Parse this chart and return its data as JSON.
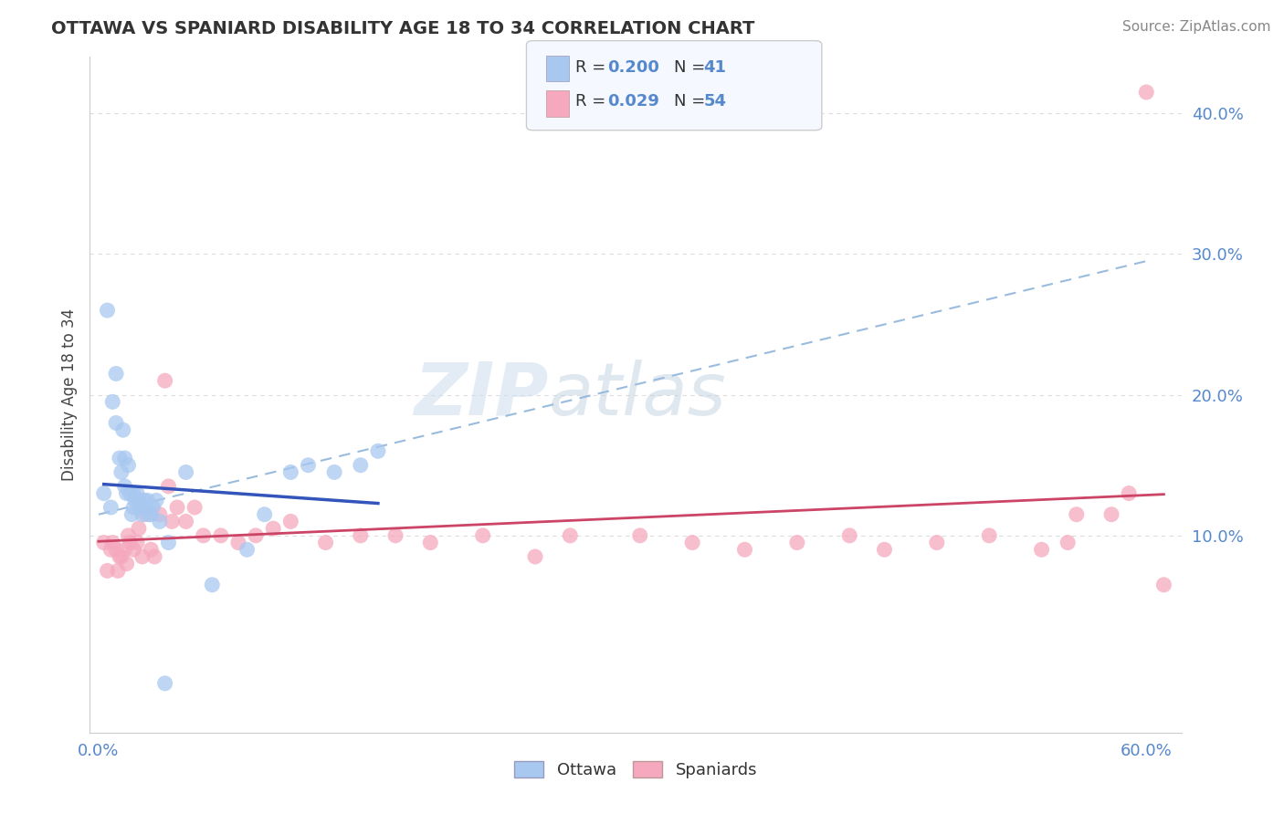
{
  "title": "OTTAWA VS SPANIARD DISABILITY AGE 18 TO 34 CORRELATION CHART",
  "source": "Source: ZipAtlas.com",
  "ylabel": "Disability Age 18 to 34",
  "xlim": [
    -0.005,
    0.62
  ],
  "ylim": [
    -0.04,
    0.44
  ],
  "xticks": [
    0.0,
    0.1,
    0.2,
    0.3,
    0.4,
    0.5,
    0.6
  ],
  "yticks": [
    0.0,
    0.1,
    0.2,
    0.3,
    0.4
  ],
  "ottawa_R": 0.2,
  "ottawa_N": 41,
  "spaniard_R": 0.029,
  "spaniard_N": 54,
  "ottawa_color": "#A8C8F0",
  "spaniard_color": "#F5A8BE",
  "ottawa_line_color": "#3355BB",
  "spaniard_line_color": "#CC4466",
  "ref_line_color": "#99BBDD",
  "tick_color": "#5588CC",
  "background_color": "#FFFFFF",
  "grid_color": "#DDDDDD",
  "ottawa_x": [
    0.003,
    0.005,
    0.007,
    0.008,
    0.01,
    0.01,
    0.012,
    0.013,
    0.014,
    0.015,
    0.015,
    0.016,
    0.017,
    0.018,
    0.019,
    0.02,
    0.02,
    0.021,
    0.022,
    0.023,
    0.024,
    0.025,
    0.026,
    0.027,
    0.028,
    0.029,
    0.03,
    0.031,
    0.033,
    0.035,
    0.038,
    0.04,
    0.05,
    0.065,
    0.085,
    0.095,
    0.11,
    0.12,
    0.135,
    0.15,
    0.16
  ],
  "ottawa_y": [
    0.13,
    0.26,
    0.12,
    0.195,
    0.215,
    0.18,
    0.155,
    0.145,
    0.175,
    0.155,
    0.135,
    0.13,
    0.15,
    0.13,
    0.115,
    0.12,
    0.13,
    0.125,
    0.13,
    0.125,
    0.12,
    0.115,
    0.125,
    0.12,
    0.125,
    0.115,
    0.115,
    0.12,
    0.125,
    0.11,
    -0.005,
    0.095,
    0.145,
    0.065,
    0.09,
    0.115,
    0.145,
    0.15,
    0.145,
    0.15,
    0.16
  ],
  "spaniard_x": [
    0.003,
    0.005,
    0.007,
    0.008,
    0.01,
    0.011,
    0.012,
    0.013,
    0.015,
    0.016,
    0.017,
    0.018,
    0.02,
    0.022,
    0.023,
    0.025,
    0.027,
    0.03,
    0.032,
    0.035,
    0.038,
    0.04,
    0.042,
    0.045,
    0.05,
    0.055,
    0.06,
    0.07,
    0.08,
    0.09,
    0.1,
    0.11,
    0.13,
    0.15,
    0.17,
    0.19,
    0.22,
    0.25,
    0.27,
    0.31,
    0.34,
    0.37,
    0.4,
    0.43,
    0.45,
    0.48,
    0.51,
    0.54,
    0.555,
    0.56,
    0.58,
    0.59,
    0.6,
    0.61
  ],
  "spaniard_y": [
    0.095,
    0.075,
    0.09,
    0.095,
    0.09,
    0.075,
    0.085,
    0.085,
    0.09,
    0.08,
    0.1,
    0.095,
    0.09,
    0.095,
    0.105,
    0.085,
    0.115,
    0.09,
    0.085,
    0.115,
    0.21,
    0.135,
    0.11,
    0.12,
    0.11,
    0.12,
    0.1,
    0.1,
    0.095,
    0.1,
    0.105,
    0.11,
    0.095,
    0.1,
    0.1,
    0.095,
    0.1,
    0.085,
    0.1,
    0.1,
    0.095,
    0.09,
    0.095,
    0.1,
    0.09,
    0.095,
    0.1,
    0.09,
    0.095,
    0.115,
    0.115,
    0.13,
    0.415,
    0.065
  ],
  "ref_line_x": [
    0.0,
    0.6
  ],
  "ref_line_y": [
    0.115,
    0.295
  ]
}
